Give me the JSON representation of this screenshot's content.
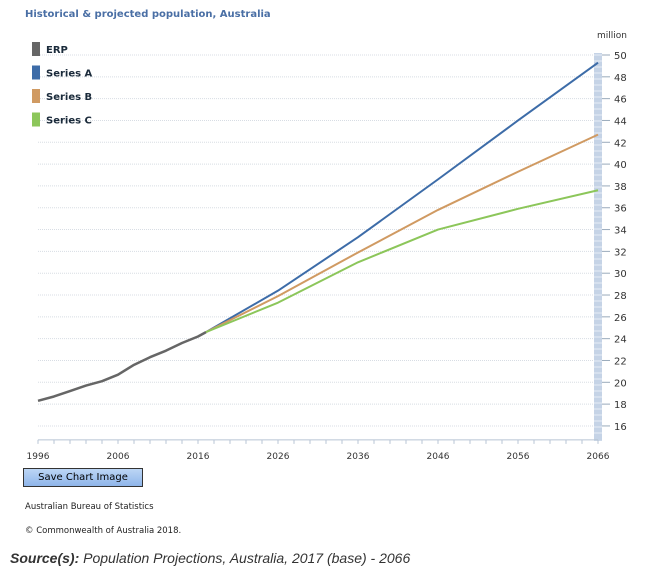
{
  "chart_data": {
    "type": "line",
    "title": "Historical & projected population, Australia",
    "ylabel": "million",
    "xlabel": "",
    "xlim": [
      1996,
      2066
    ],
    "ylim": [
      15,
      50
    ],
    "x_ticks": [
      1996,
      2006,
      2016,
      2026,
      2036,
      2046,
      2056,
      2066
    ],
    "y_ticks": [
      16,
      18,
      20,
      22,
      24,
      26,
      28,
      30,
      32,
      34,
      36,
      38,
      40,
      42,
      44,
      46,
      48,
      50
    ],
    "grid": true,
    "legend_position": "top-left",
    "series": [
      {
        "name": "ERP",
        "color": "#666666",
        "x": [
          1996,
          1998,
          2000,
          2002,
          2004,
          2006,
          2008,
          2010,
          2012,
          2014,
          2016,
          2017
        ],
        "y": [
          18.3,
          18.7,
          19.2,
          19.7,
          20.1,
          20.7,
          21.6,
          22.3,
          22.9,
          23.6,
          24.2,
          24.6
        ]
      },
      {
        "name": "Series A",
        "color": "#3d6ca8",
        "x": [
          2017,
          2026,
          2036,
          2046,
          2056,
          2066
        ],
        "y": [
          24.6,
          28.4,
          33.3,
          38.6,
          44.0,
          49.3
        ]
      },
      {
        "name": "Series B",
        "color": "#d09a62",
        "x": [
          2017,
          2026,
          2036,
          2046,
          2056,
          2066
        ],
        "y": [
          24.6,
          27.9,
          31.9,
          35.8,
          39.3,
          42.7
        ]
      },
      {
        "name": "Series C",
        "color": "#8cc65a",
        "x": [
          2017,
          2026,
          2036,
          2046,
          2056,
          2066
        ],
        "y": [
          24.6,
          27.3,
          31.0,
          34.0,
          35.9,
          37.6
        ]
      }
    ]
  },
  "buttons": {
    "save_chart": "Save Chart Image"
  },
  "footer": {
    "publisher": "Australian Bureau of Statistics",
    "copyright": "© Commonwealth of Australia 2018.",
    "source_label": "Source(s):",
    "source_text": " Population Projections, Australia, 2017 (base) - 2066"
  }
}
